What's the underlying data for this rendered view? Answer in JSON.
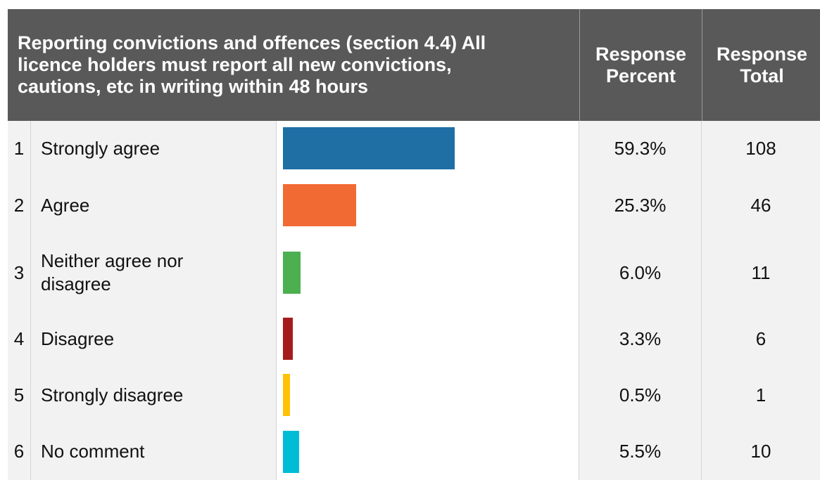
{
  "table": {
    "header": {
      "question": "Reporting convictions and offences (section 4.4) All licence holders must report all new convictions, cautions, etc in writing within 48 hours",
      "question_lines": [
        "Reporting convictions and offences (section 4.4) All",
        "licence holders must report all new convictions,",
        "cautions, etc in writing within 48 hours"
      ],
      "percent_lines": [
        "Response",
        "Percent"
      ],
      "total_lines": [
        "Response",
        "Total"
      ]
    }
  },
  "chart_data": {
    "type": "bar",
    "orientation": "horizontal",
    "categories": [
      "Strongly agree",
      "Agree",
      "Neither agree nor disagree",
      "Disagree",
      "Strongly disagree",
      "No comment"
    ],
    "label_lines": [
      [
        "Strongly agree"
      ],
      [
        "Agree"
      ],
      [
        "Neither agree nor",
        "disagree"
      ],
      [
        "Disagree"
      ],
      [
        "Strongly disagree"
      ],
      [
        "No comment"
      ]
    ],
    "row_numbers": [
      "1",
      "2",
      "3",
      "4",
      "5",
      "6"
    ],
    "values": [
      59.3,
      25.3,
      6.0,
      3.3,
      0.5,
      5.5
    ],
    "percent_labels": [
      "59.3%",
      "25.3%",
      "6.0%",
      "3.3%",
      "0.5%",
      "5.5%"
    ],
    "totals": [
      "108",
      "46",
      "11",
      "6",
      "1",
      "10"
    ],
    "colors": [
      "#1f6fa5",
      "#f26a33",
      "#4caf50",
      "#a51c1c",
      "#ffc107",
      "#00bcd4"
    ]
  }
}
